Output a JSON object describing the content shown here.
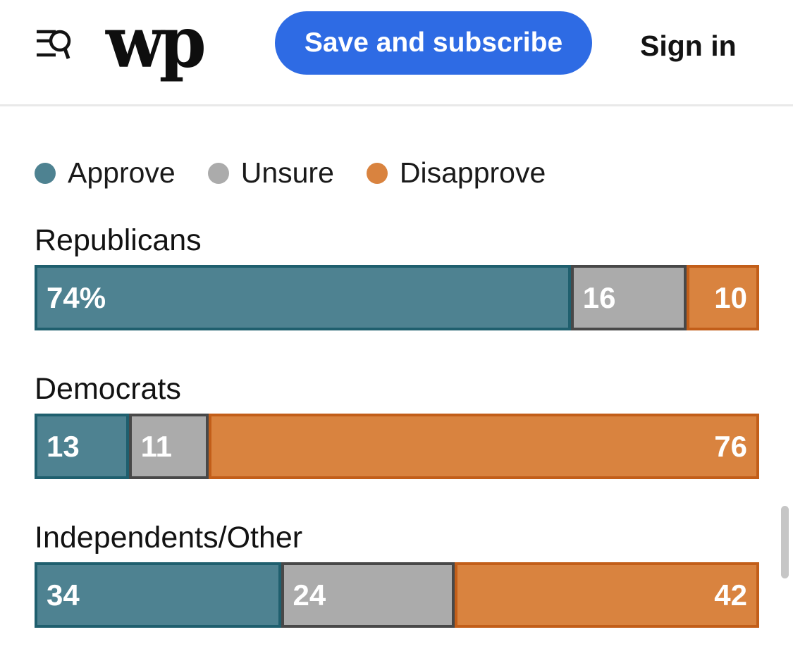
{
  "header": {
    "logo_text": "wp",
    "subscribe_label": "Save and subscribe",
    "signin_label": "Sign in",
    "menu_icon": "menu-search-icon"
  },
  "legend": [
    {
      "key": "approve",
      "label": "Approve"
    },
    {
      "key": "unsure",
      "label": "Unsure"
    },
    {
      "key": "disapprove",
      "label": "Disapprove"
    }
  ],
  "chart_data": {
    "type": "bar",
    "stacked": true,
    "orientation": "horizontal",
    "categories": [
      "Republicans",
      "Democrats",
      "Independents/Other"
    ],
    "series": [
      {
        "name": "Approve",
        "values": [
          74,
          13,
          34
        ]
      },
      {
        "name": "Unsure",
        "values": [
          16,
          11,
          24
        ]
      },
      {
        "name": "Disapprove",
        "values": [
          10,
          76,
          42
        ]
      }
    ],
    "value_labels": [
      [
        "74%",
        "16",
        "10"
      ],
      [
        "13",
        "11",
        "76"
      ],
      [
        "34",
        "24",
        "42"
      ]
    ],
    "xlim": [
      0,
      100
    ],
    "legend_position": "top",
    "grid": false
  },
  "colors": {
    "approve_fill": "#4E8291",
    "approve_border": "#1F5F6E",
    "unsure_fill": "#ABABAB",
    "unsure_border": "#484848",
    "disapprove_fill": "#D9833F",
    "disapprove_border": "#C25E19",
    "button_blue": "#2E6BE4",
    "divider": "#E9E9E9",
    "scrollbar": "#C6C6C6"
  }
}
